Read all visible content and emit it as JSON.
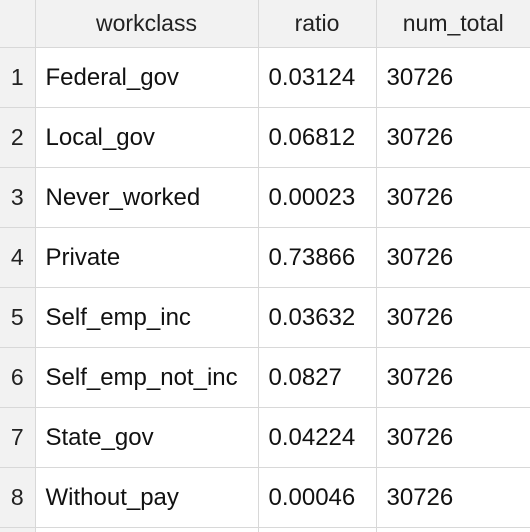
{
  "columns": [
    "workclass",
    "ratio",
    "num_total"
  ],
  "rows": [
    {
      "index": "1",
      "workclass": "Federal_gov",
      "ratio": "0.03124",
      "num_total": "30726"
    },
    {
      "index": "2",
      "workclass": "Local_gov",
      "ratio": "0.06812",
      "num_total": "30726"
    },
    {
      "index": "3",
      "workclass": "Never_worked",
      "ratio": "0.00023",
      "num_total": "30726"
    },
    {
      "index": "4",
      "workclass": "Private",
      "ratio": "0.73866",
      "num_total": "30726"
    },
    {
      "index": "5",
      "workclass": "Self_emp_inc",
      "ratio": "0.03632",
      "num_total": "30726"
    },
    {
      "index": "6",
      "workclass": "Self_emp_not_inc",
      "ratio": "0.0827",
      "num_total": "30726"
    },
    {
      "index": "7",
      "workclass": "State_gov",
      "ratio": "0.04224",
      "num_total": "30726"
    },
    {
      "index": "8",
      "workclass": "Without_pay",
      "ratio": "0.00046",
      "num_total": "30726"
    }
  ]
}
